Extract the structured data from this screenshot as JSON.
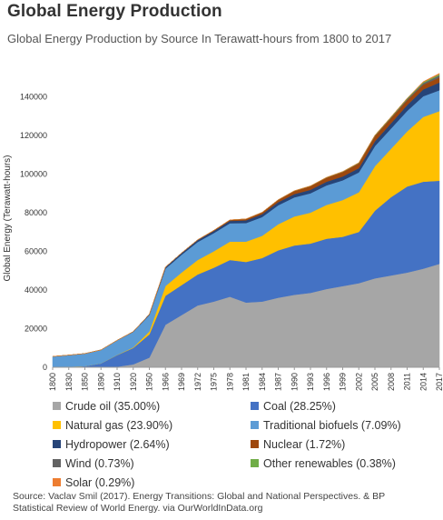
{
  "title": "Global Energy Production",
  "subtitle": "Global Energy Production by Source In Terawatt-hours from 1800 to 2017",
  "source_line1": "Source: Vaclav Smil (2017). Energy Transitions: Global and National Perspectives. & BP",
  "source_line2": "Statistical Review of World Energy. via OurWorldInData.org",
  "chart_data": {
    "type": "area",
    "stacked": true,
    "ylabel": "Global Energy (Terawatt-hours)",
    "xlabel": "",
    "ylim": [
      0,
      150000
    ],
    "yticks": [
      0,
      20000,
      40000,
      60000,
      80000,
      100000,
      120000,
      140000
    ],
    "xtick_labels": [
      "1800",
      "1830",
      "1850",
      "1890",
      "1910",
      "1920",
      "1950",
      "1966",
      "1969",
      "1972",
      "1975",
      "1978",
      "1981",
      "1984",
      "1987",
      "1990",
      "1993",
      "1996",
      "1999",
      "2002",
      "2005",
      "2008",
      "2011",
      "2014",
      "2017"
    ],
    "x": [
      1800,
      1830,
      1850,
      1890,
      1910,
      1920,
      1950,
      1966,
      1969,
      1972,
      1975,
      1978,
      1981,
      1984,
      1987,
      1990,
      1993,
      1996,
      1999,
      2002,
      2005,
      2008,
      2011,
      2014,
      2017
    ],
    "grid": false,
    "legend_position": "bottom",
    "series": [
      {
        "name": "Crude oil (35.00%)",
        "color": "#a6a6a6",
        "values": [
          0,
          0,
          0,
          0,
          300,
          1500,
          5000,
          22000,
          27000,
          32000,
          34000,
          36500,
          33500,
          34000,
          36000,
          37500,
          38500,
          40500,
          42000,
          43500,
          46000,
          47500,
          49000,
          51000,
          53500
        ]
      },
      {
        "name": "Coal (28.25%)",
        "color": "#4472c4",
        "values": [
          100,
          300,
          600,
          2000,
          6000,
          8500,
          12000,
          15000,
          15500,
          16000,
          17500,
          19000,
          21000,
          22500,
          24500,
          25500,
          25500,
          26000,
          25500,
          26500,
          35000,
          40500,
          44500,
          45000,
          43000
        ]
      },
      {
        "name": "Natural gas (23.90%)",
        "color": "#ffc000",
        "values": [
          0,
          0,
          0,
          0,
          100,
          300,
          1500,
          5000,
          6500,
          7500,
          8500,
          9500,
          10500,
          11500,
          13500,
          15000,
          16000,
          17500,
          19000,
          20500,
          23000,
          25000,
          28500,
          33500,
          36000
        ]
      },
      {
        "name": "Traditional biofuels (7.09%)",
        "color": "#5b9bd5",
        "values": [
          5500,
          6000,
          6500,
          7000,
          7500,
          8000,
          8500,
          9000,
          9200,
          9300,
          9400,
          9500,
          9600,
          9700,
          9800,
          9900,
          10000,
          10100,
          10200,
          10300,
          10400,
          10500,
          10600,
          10700,
          10800
        ]
      },
      {
        "name": "Hydropower (2.64%)",
        "color": "#264478",
        "values": [
          0,
          0,
          0,
          0,
          50,
          150,
          400,
          800,
          900,
          1000,
          1100,
          1200,
          1400,
          1500,
          1600,
          1700,
          1800,
          1900,
          2000,
          2200,
          2500,
          2700,
          3000,
          3500,
          4000
        ]
      },
      {
        "name": "Nuclear (1.72%)",
        "color": "#9e480e",
        "values": [
          0,
          0,
          0,
          0,
          0,
          0,
          0,
          20,
          50,
          150,
          300,
          500,
          700,
          900,
          1200,
          1600,
          1900,
          2100,
          2300,
          2500,
          2700,
          2700,
          2600,
          2500,
          2600
        ]
      },
      {
        "name": "Wind (0.73%)",
        "color": "#636363",
        "values": [
          0,
          0,
          0,
          0,
          0,
          0,
          0,
          0,
          0,
          0,
          0,
          0,
          0,
          0,
          0,
          0,
          0,
          0,
          50,
          80,
          150,
          250,
          500,
          800,
          1100
        ]
      },
      {
        "name": "Other renewables (0.38%)",
        "color": "#70ad47",
        "values": [
          0,
          0,
          0,
          0,
          0,
          0,
          0,
          0,
          0,
          0,
          0,
          20,
          40,
          60,
          80,
          100,
          120,
          150,
          180,
          220,
          280,
          350,
          420,
          500,
          580
        ]
      },
      {
        "name": "Solar (0.29%)",
        "color": "#ed7d31",
        "values": [
          0,
          0,
          0,
          0,
          0,
          0,
          0,
          0,
          0,
          0,
          0,
          0,
          0,
          0,
          0,
          0,
          0,
          0,
          0,
          0,
          0,
          20,
          60,
          250,
          450
        ]
      }
    ]
  }
}
